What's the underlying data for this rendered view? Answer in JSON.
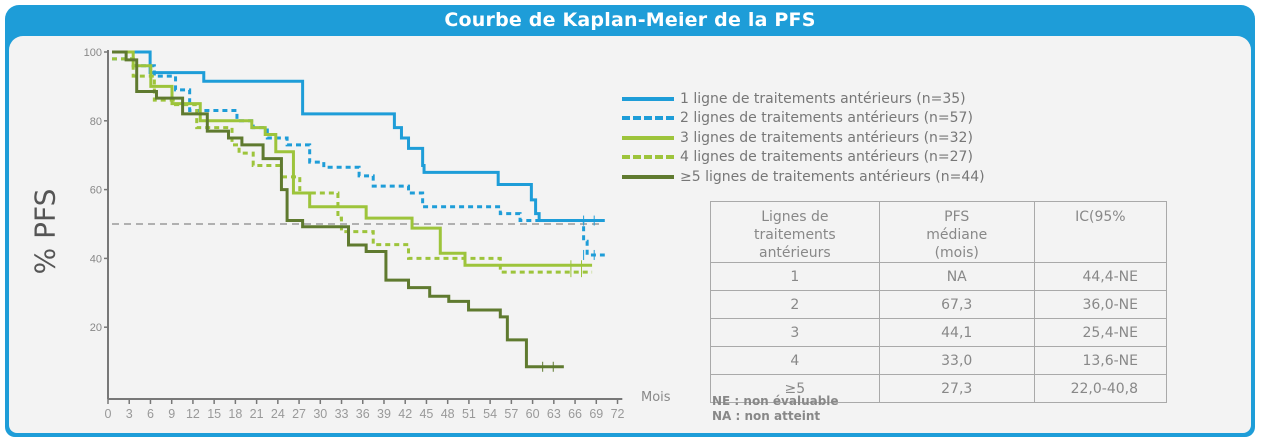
{
  "title": "Courbe de Kaplan-Meier  de la PFS",
  "chart_data": {
    "type": "line",
    "title": "Courbe de Kaplan-Meier  de la PFS",
    "xlabel": "Mois",
    "ylabel": "% PFS",
    "xlim": [
      0,
      72
    ],
    "ylim": [
      0,
      100
    ],
    "xticks": [
      "0",
      "3",
      "6",
      "9",
      "12",
      "15",
      "18",
      "21",
      "24",
      "27",
      "30",
      "33",
      "36",
      "39",
      "42",
      "45",
      "48",
      "51",
      "54",
      "57",
      "60",
      "63",
      "66",
      "69",
      "72"
    ],
    "yticks": [
      "100",
      "80",
      "60",
      "40",
      "20"
    ],
    "reference_line": 50,
    "legend_position": "top-right",
    "series": [
      {
        "name": "1 ligne de traitements antérieurs (n=35)",
        "color": "#1e9dd8",
        "style": "solid",
        "points": [
          [
            0,
            100
          ],
          [
            5.4,
            94
          ],
          [
            13,
            91.5
          ],
          [
            27,
            82
          ],
          [
            40,
            78
          ],
          [
            41,
            75
          ],
          [
            42,
            72
          ],
          [
            44,
            67
          ],
          [
            44.2,
            65
          ],
          [
            54.7,
            61.5
          ],
          [
            59.4,
            57
          ],
          [
            60,
            53
          ],
          [
            60.5,
            51
          ],
          [
            69.8,
            51
          ]
        ]
      },
      {
        "name": "2 lignes de traitements antérieurs (n=57)",
        "color": "#1e9dd8",
        "style": "dashed",
        "points": [
          [
            0,
            98
          ],
          [
            3,
            96
          ],
          [
            6,
            93
          ],
          [
            9,
            89
          ],
          [
            11,
            83
          ],
          [
            17.7,
            80
          ],
          [
            20,
            78
          ],
          [
            22,
            75
          ],
          [
            24.8,
            73
          ],
          [
            28,
            68
          ],
          [
            30,
            66.5
          ],
          [
            35,
            64
          ],
          [
            37,
            61
          ],
          [
            42,
            59
          ],
          [
            44,
            55
          ],
          [
            55,
            53
          ],
          [
            57.8,
            51
          ],
          [
            66,
            51
          ],
          [
            66.8,
            45
          ],
          [
            67.3,
            41
          ],
          [
            69.8,
            41
          ]
        ]
      },
      {
        "name": "3 lignes de traitements antérieurs (n=32)",
        "color": "#9dc43b",
        "style": "solid",
        "points": [
          [
            0,
            100
          ],
          [
            3,
            96
          ],
          [
            5.5,
            90
          ],
          [
            8.5,
            85
          ],
          [
            12.5,
            80
          ],
          [
            19.8,
            78
          ],
          [
            21.7,
            76
          ],
          [
            23.2,
            71
          ],
          [
            25.7,
            59
          ],
          [
            28,
            55
          ],
          [
            36,
            51.7
          ],
          [
            42.5,
            48.8
          ],
          [
            46.5,
            41.5
          ],
          [
            50,
            38
          ],
          [
            68,
            38
          ]
        ]
      },
      {
        "name": "4 lignes de traitements antérieurs (n=27)",
        "color": "#9dc43b",
        "style": "dashed",
        "points": [
          [
            0,
            98
          ],
          [
            3,
            93
          ],
          [
            6,
            86
          ],
          [
            9,
            84.7
          ],
          [
            12,
            78
          ],
          [
            17,
            73
          ],
          [
            18,
            70.6
          ],
          [
            20,
            67
          ],
          [
            24,
            63.7
          ],
          [
            26.6,
            59
          ],
          [
            32,
            51.7
          ],
          [
            32.5,
            47.8
          ],
          [
            37,
            44
          ],
          [
            42,
            40
          ],
          [
            55,
            36
          ],
          [
            68,
            36
          ]
        ]
      },
      {
        "name": "≥5  lignes de traitements antérieurs (n=44)",
        "color": "#5f7a2f",
        "style": "solid",
        "points": [
          [
            0,
            100
          ],
          [
            2,
            97.7
          ],
          [
            3.5,
            88.5
          ],
          [
            6.3,
            86.6
          ],
          [
            10,
            82
          ],
          [
            13.5,
            77
          ],
          [
            16.5,
            75
          ],
          [
            18.4,
            73
          ],
          [
            21.4,
            69
          ],
          [
            24,
            60
          ],
          [
            24.8,
            51
          ],
          [
            27,
            49.2
          ],
          [
            33.5,
            43.9
          ],
          [
            36,
            42
          ],
          [
            38.8,
            33.7
          ],
          [
            42,
            31.5
          ],
          [
            45,
            29
          ],
          [
            47.7,
            27.5
          ],
          [
            50.5,
            25
          ],
          [
            55,
            23
          ],
          [
            56,
            16.3
          ],
          [
            58.7,
            8.5
          ],
          [
            64,
            8.5
          ]
        ]
      }
    ]
  },
  "table": {
    "headers": [
      "Lignes de traitements antérieurs",
      "PFS médiane (mois)",
      "IC(95%"
    ],
    "rows": [
      [
        "1",
        "NA",
        "44,4-NE"
      ],
      [
        "2",
        "67,3",
        "36,0-NE"
      ],
      [
        "3",
        "44,1",
        "25,4-NE"
      ],
      [
        "4",
        "33,0",
        "13,6-NE"
      ],
      [
        "≥5",
        "27,3",
        "22,0-40,8"
      ]
    ]
  },
  "footnotes": [
    "NE : non évaluable",
    "NA : non atteint"
  ]
}
